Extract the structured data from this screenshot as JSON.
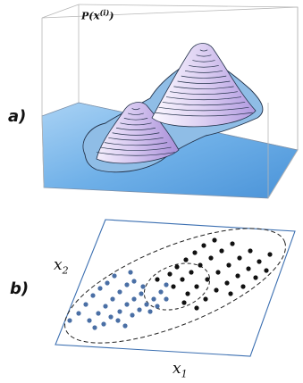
{
  "panel_a": {
    "letter": "a)",
    "z_label": "P(x(i))",
    "z_label_main": "P(",
    "z_label_var": "x",
    "z_label_sup": "(i)",
    "z_label_close": ")",
    "surface_color": "#6fb0e8",
    "peak_color": "#c9b7ea"
  },
  "panel_b": {
    "letter": "b)",
    "x1_main": "x",
    "x1_sub": "1",
    "x2_main": "x",
    "x2_sub": "2",
    "cluster_blue_color": "#4a6fa5",
    "cluster_black_color": "#111111"
  }
}
